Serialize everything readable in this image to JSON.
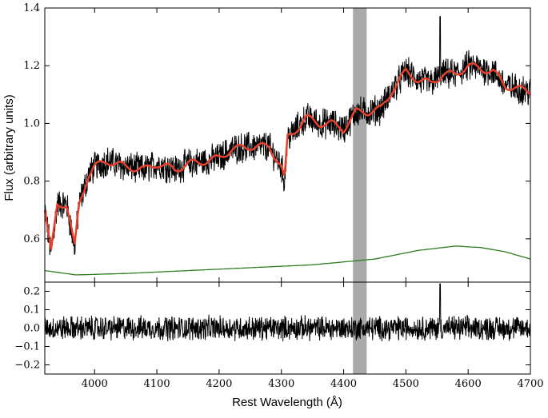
{
  "chart_data": [
    {
      "type": "line",
      "panel": "spectrum",
      "xlabel": "",
      "ylabel": "Flux (arbitrary units)",
      "xlim": [
        3920,
        4700
      ],
      "ylim": [
        0.45,
        1.4
      ],
      "xticks": [
        4000,
        4100,
        4200,
        4300,
        4400,
        4500,
        4600,
        4700
      ],
      "yticks": [
        0.6,
        0.8,
        1.0,
        1.2,
        1.4
      ],
      "ytick_labels": [
        "0.6",
        "0.8",
        "1.0",
        "1.2",
        "1.4"
      ],
      "shaded_band": {
        "x": [
          4415,
          4437
        ],
        "color": "#aaaaaa"
      },
      "series": [
        {
          "role": "observed spectrum (noisy)",
          "color": "#000000",
          "noise_amplitude": 0.045,
          "x": [
            3920,
            3930,
            3940,
            3955,
            3962,
            3968,
            3975,
            3990,
            4000,
            4020,
            4050,
            4080,
            4100,
            4130,
            4150,
            4180,
            4200,
            4220,
            4250,
            4280,
            4300,
            4305,
            4310,
            4320,
            4340,
            4360,
            4380,
            4400,
            4420,
            4440,
            4460,
            4480,
            4500,
            4520,
            4540,
            4560,
            4580,
            4600,
            4620,
            4640,
            4660,
            4680,
            4700
          ],
          "y": [
            0.7,
            0.55,
            0.72,
            0.72,
            0.64,
            0.57,
            0.72,
            0.82,
            0.85,
            0.87,
            0.85,
            0.84,
            0.86,
            0.84,
            0.86,
            0.87,
            0.88,
            0.91,
            0.92,
            0.92,
            0.85,
            0.8,
            0.95,
            0.97,
            1.02,
            1.0,
            1.0,
            0.98,
            1.04,
            1.04,
            1.05,
            1.12,
            1.18,
            1.15,
            1.14,
            1.17,
            1.17,
            1.2,
            1.19,
            1.18,
            1.13,
            1.12,
            1.11
          ]
        },
        {
          "role": "smoothed fit",
          "color": "#e8402a",
          "x": [
            3920,
            3930,
            3940,
            3955,
            3962,
            3968,
            3975,
            3990,
            4000,
            4020,
            4050,
            4080,
            4100,
            4130,
            4150,
            4180,
            4200,
            4220,
            4250,
            4280,
            4300,
            4305,
            4310,
            4320,
            4340,
            4360,
            4380,
            4400,
            4420,
            4440,
            4460,
            4480,
            4500,
            4520,
            4540,
            4560,
            4580,
            4600,
            4620,
            4640,
            4660,
            4680,
            4700
          ],
          "y": [
            0.7,
            0.55,
            0.72,
            0.72,
            0.64,
            0.57,
            0.72,
            0.82,
            0.85,
            0.87,
            0.85,
            0.84,
            0.86,
            0.84,
            0.86,
            0.87,
            0.88,
            0.91,
            0.92,
            0.92,
            0.85,
            0.8,
            0.95,
            0.97,
            1.02,
            1.0,
            1.0,
            0.98,
            1.04,
            1.04,
            1.05,
            1.12,
            1.18,
            1.15,
            1.14,
            1.17,
            1.17,
            1.2,
            1.19,
            1.18,
            1.13,
            1.12,
            1.11
          ]
        },
        {
          "role": "continuum component",
          "color": "#2e7d1f",
          "x": [
            3920,
            3970,
            4050,
            4150,
            4250,
            4350,
            4450,
            4520,
            4580,
            4620,
            4660,
            4700
          ],
          "y": [
            0.49,
            0.475,
            0.48,
            0.49,
            0.5,
            0.51,
            0.53,
            0.56,
            0.575,
            0.57,
            0.555,
            0.53
          ]
        }
      ]
    },
    {
      "type": "line",
      "panel": "residuals",
      "xlabel": "Rest Wavelength (Å)",
      "ylabel": "",
      "xlim": [
        3920,
        4700
      ],
      "ylim": [
        -0.25,
        0.25
      ],
      "xticks": [
        4000,
        4100,
        4200,
        4300,
        4400,
        4500,
        4600,
        4700
      ],
      "yticks": [
        -0.2,
        -0.1,
        0.0,
        0.1,
        0.2
      ],
      "ytick_labels": [
        "−0.2",
        "−0.1",
        "0.0",
        "0.1",
        "0.2"
      ],
      "shaded_band": {
        "x": [
          4415,
          4437
        ],
        "color": "#aaaaaa"
      },
      "series": [
        {
          "role": "residuals",
          "color": "#000000",
          "noise_amplitude": 0.055,
          "spike": {
            "x": 4555,
            "y": 0.24
          }
        }
      ]
    }
  ]
}
